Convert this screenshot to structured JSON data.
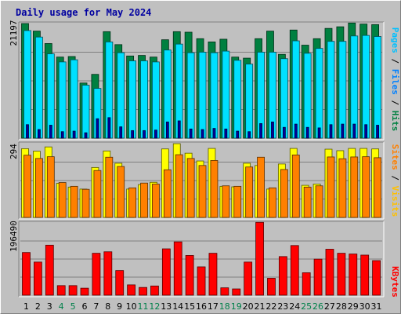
{
  "title": "Daily usage for May 2024",
  "chart_data": [
    {
      "type": "bar",
      "panel": "hits-files-pages",
      "categories": [
        "1",
        "2",
        "3",
        "4",
        "5",
        "6",
        "7",
        "8",
        "9",
        "10",
        "11",
        "12",
        "13",
        "14",
        "15",
        "16",
        "17",
        "18",
        "19",
        "20",
        "21",
        "22",
        "23",
        "24",
        "25",
        "26",
        "27",
        "28",
        "29",
        "30",
        "31"
      ],
      "ylabel_max": "21197",
      "ylim": [
        0,
        21197
      ],
      "series": [
        {
          "name": "Hits",
          "color": "#008040",
          "values": [
            21200,
            19800,
            17500,
            15000,
            15100,
            10200,
            11800,
            19700,
            17300,
            15200,
            15300,
            15000,
            18200,
            19700,
            19600,
            18400,
            17800,
            18300,
            15000,
            14800,
            18400,
            19800,
            15500,
            20000,
            17200,
            18400,
            20300,
            20600,
            21300,
            21100,
            21000
          ]
        },
        {
          "name": "Files",
          "color": "#00E0FF",
          "values": [
            19900,
            18700,
            15600,
            14100,
            14500,
            9800,
            9200,
            17800,
            15800,
            14300,
            14300,
            14100,
            16300,
            17400,
            15800,
            15900,
            15800,
            16100,
            14400,
            13700,
            15900,
            15900,
            14700,
            18000,
            15700,
            16600,
            17900,
            17900,
            18900,
            19000,
            18800
          ]
        },
        {
          "name": "Pages",
          "color": "#0000A0",
          "values": [
            2500,
            1600,
            2400,
            1200,
            1300,
            1000,
            3600,
            3800,
            2100,
            1400,
            1400,
            1500,
            3000,
            3200,
            1700,
            1600,
            1800,
            1700,
            1300,
            1200,
            2700,
            3000,
            2000,
            2600,
            2000,
            1900,
            2500,
            2600,
            2600,
            2500,
            2400
          ]
        }
      ]
    },
    {
      "type": "bar",
      "panel": "visits-sites",
      "categories": [
        "1",
        "2",
        "3",
        "4",
        "5",
        "6",
        "7",
        "8",
        "9",
        "10",
        "11",
        "12",
        "13",
        "14",
        "15",
        "16",
        "17",
        "18",
        "19",
        "20",
        "21",
        "22",
        "23",
        "24",
        "25",
        "26",
        "27",
        "28",
        "29",
        "30",
        "31"
      ],
      "ylabel_max": "294",
      "ylim": [
        0,
        294
      ],
      "series": [
        {
          "name": "Visits",
          "color": "#FFFF00",
          "values": [
            274,
            264,
            281,
            136,
            121,
            113,
            199,
            265,
            216,
            113,
            131,
            140,
            273,
            294,
            256,
            225,
            275,
            124,
            122,
            216,
            207,
            113,
            213,
            275,
            128,
            133,
            272,
            266,
            275,
            275,
            273
          ]
        },
        {
          "name": "Sites",
          "color": "#FF8000",
          "values": [
            248,
            235,
            242,
            139,
            124,
            112,
            187,
            240,
            203,
            118,
            137,
            133,
            190,
            250,
            235,
            207,
            227,
            126,
            124,
            201,
            240,
            118,
            191,
            249,
            121,
            126,
            241,
            234,
            241,
            242,
            238
          ]
        }
      ]
    },
    {
      "type": "bar",
      "panel": "kbytes",
      "categories": [
        "1",
        "2",
        "3",
        "4",
        "5",
        "6",
        "7",
        "8",
        "9",
        "10",
        "11",
        "12",
        "13",
        "14",
        "15",
        "16",
        "17",
        "18",
        "19",
        "20",
        "21",
        "22",
        "23",
        "24",
        "25",
        "26",
        "27",
        "28",
        "29",
        "30",
        "31"
      ],
      "ylabel_max": "196490",
      "ylim": [
        0,
        196490
      ],
      "series": [
        {
          "name": "KBytes",
          "color": "#FF0000",
          "values": [
            116000,
            90000,
            136000,
            26000,
            26000,
            19000,
            114000,
            118000,
            67000,
            28000,
            21000,
            25000,
            126000,
            145000,
            108000,
            77000,
            114000,
            20000,
            17000,
            90000,
            198000,
            46000,
            105000,
            135000,
            61000,
            98000,
            125000,
            114000,
            112000,
            109000,
            94000
          ]
        }
      ]
    }
  ],
  "legend_labels": {
    "hits": "Hits",
    "files": "Files",
    "pages": "Pages",
    "visits": "Visits",
    "sites": "Sites",
    "kbytes": "KBytes",
    "sep": " / "
  },
  "colors": {
    "hits_text": "#008040",
    "files_text": "#0080FF",
    "pages_text": "#00C0FF",
    "visits_text": "#FFC000",
    "sites_text": "#FF8000",
    "kbytes_text": "#FF0000",
    "weekend_day": "#00804A",
    "weekday_day": "#000000"
  },
  "weekend_days": [
    4,
    5,
    11,
    12,
    18,
    19,
    25,
    26
  ]
}
